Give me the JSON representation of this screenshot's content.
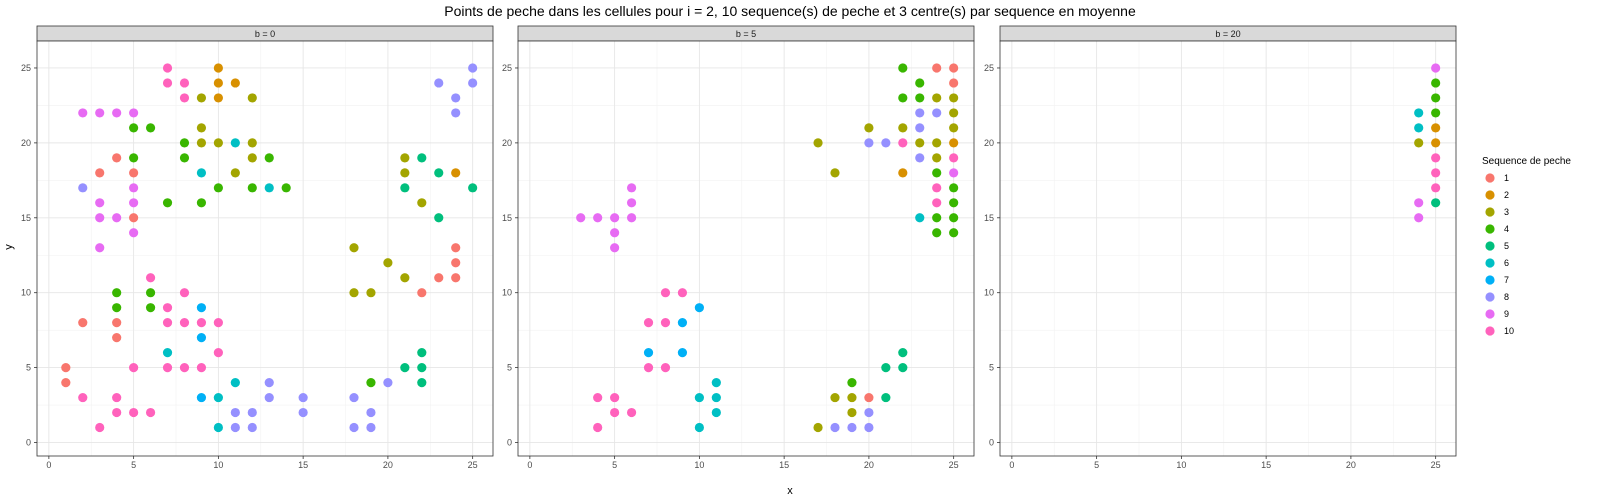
{
  "chart_data": {
    "type": "scatter",
    "title": "Points de peche dans les cellules pour i = 2, 10 sequence(s) de peche et 3 centre(s) par sequence en moyenne",
    "xlabel": "x",
    "ylabel": "y",
    "xlim": [
      -0.7,
      26.2
    ],
    "ylim": [
      -0.9,
      26.8
    ],
    "xticks": [
      0,
      5,
      10,
      15,
      20,
      25
    ],
    "yticks": [
      0,
      5,
      10,
      15,
      20,
      25
    ],
    "grid": true,
    "legend": {
      "title": "Sequence de peche",
      "placement": "right",
      "labels": [
        "1",
        "2",
        "3",
        "4",
        "5",
        "6",
        "7",
        "8",
        "9",
        "10"
      ]
    },
    "colors": {
      "1": "#F8766D",
      "2": "#D89000",
      "3": "#A3A500",
      "4": "#39B600",
      "5": "#00BF7D",
      "6": "#00BFC4",
      "7": "#00B0F6",
      "8": "#9590FF",
      "9": "#E76BF3",
      "10": "#FF62BC"
    },
    "panels": [
      {
        "label": "b = 0",
        "points": [
          [
            1,
            5,
            1
          ],
          [
            1,
            4,
            1
          ],
          [
            2,
            8,
            1
          ],
          [
            3,
            18,
            1
          ],
          [
            4,
            19,
            1
          ],
          [
            4,
            8,
            1
          ],
          [
            4,
            7,
            1
          ],
          [
            5,
            18,
            1
          ],
          [
            5,
            15,
            1
          ],
          [
            22,
            10,
            1
          ],
          [
            23,
            11,
            1
          ],
          [
            24,
            11,
            1
          ],
          [
            24,
            12,
            1
          ],
          [
            24,
            13,
            1
          ],
          [
            10,
            25,
            2
          ],
          [
            10,
            24,
            2
          ],
          [
            10,
            23,
            2
          ],
          [
            11,
            24,
            2
          ],
          [
            24,
            18,
            2
          ],
          [
            9,
            23,
            3
          ],
          [
            9,
            21,
            3
          ],
          [
            9,
            20,
            3
          ],
          [
            10,
            20,
            3
          ],
          [
            11,
            18,
            3
          ],
          [
            12,
            20,
            3
          ],
          [
            12,
            19,
            3
          ],
          [
            12,
            23,
            3
          ],
          [
            18,
            13,
            3
          ],
          [
            18,
            10,
            3
          ],
          [
            19,
            10,
            3
          ],
          [
            20,
            12,
            3
          ],
          [
            21,
            11,
            3
          ],
          [
            21,
            18,
            3
          ],
          [
            21,
            19,
            3
          ],
          [
            22,
            16,
            3
          ],
          [
            4,
            10,
            4
          ],
          [
            4,
            9,
            4
          ],
          [
            5,
            21,
            4
          ],
          [
            5,
            19,
            4
          ],
          [
            6,
            21,
            4
          ],
          [
            6,
            10,
            4
          ],
          [
            6,
            9,
            4
          ],
          [
            7,
            16,
            4
          ],
          [
            8,
            20,
            4
          ],
          [
            8,
            19,
            4
          ],
          [
            9,
            16,
            4
          ],
          [
            10,
            17,
            4
          ],
          [
            12,
            17,
            4
          ],
          [
            13,
            19,
            4
          ],
          [
            14,
            17,
            4
          ],
          [
            19,
            4,
            4
          ],
          [
            21,
            17,
            5
          ],
          [
            21,
            5,
            5
          ],
          [
            22,
            19,
            5
          ],
          [
            22,
            6,
            5
          ],
          [
            22,
            5,
            5
          ],
          [
            22,
            4,
            5
          ],
          [
            23,
            18,
            5
          ],
          [
            23,
            15,
            5
          ],
          [
            25,
            17,
            5
          ],
          [
            7,
            6,
            6
          ],
          [
            9,
            18,
            6
          ],
          [
            10,
            1,
            6
          ],
          [
            10,
            3,
            6
          ],
          [
            11,
            20,
            6
          ],
          [
            11,
            4,
            6
          ],
          [
            13,
            17,
            6
          ],
          [
            9,
            9,
            7
          ],
          [
            9,
            7,
            7
          ],
          [
            9,
            3,
            7
          ],
          [
            2,
            17,
            8
          ],
          [
            11,
            2,
            8
          ],
          [
            11,
            1,
            8
          ],
          [
            12,
            2,
            8
          ],
          [
            12,
            1,
            8
          ],
          [
            13,
            4,
            8
          ],
          [
            13,
            3,
            8
          ],
          [
            15,
            3,
            8
          ],
          [
            15,
            2,
            8
          ],
          [
            18,
            3,
            8
          ],
          [
            18,
            1,
            8
          ],
          [
            19,
            2,
            8
          ],
          [
            19,
            1,
            8
          ],
          [
            20,
            4,
            8
          ],
          [
            23,
            24,
            8
          ],
          [
            24,
            23,
            8
          ],
          [
            24,
            22,
            8
          ],
          [
            25,
            25,
            8
          ],
          [
            25,
            24,
            8
          ],
          [
            2,
            22,
            9
          ],
          [
            3,
            22,
            9
          ],
          [
            3,
            16,
            9
          ],
          [
            3,
            15,
            9
          ],
          [
            3,
            13,
            9
          ],
          [
            4,
            22,
            9
          ],
          [
            4,
            15,
            9
          ],
          [
            5,
            22,
            9
          ],
          [
            5,
            17,
            9
          ],
          [
            5,
            16,
            9
          ],
          [
            5,
            14,
            9
          ],
          [
            2,
            3,
            10
          ],
          [
            3,
            1,
            10
          ],
          [
            4,
            3,
            10
          ],
          [
            4,
            2,
            10
          ],
          [
            5,
            5,
            10
          ],
          [
            5,
            2,
            10
          ],
          [
            6,
            11,
            10
          ],
          [
            6,
            2,
            10
          ],
          [
            7,
            25,
            10
          ],
          [
            7,
            24,
            10
          ],
          [
            7,
            9,
            10
          ],
          [
            7,
            8,
            10
          ],
          [
            7,
            5,
            10
          ],
          [
            8,
            24,
            10
          ],
          [
            8,
            23,
            10
          ],
          [
            8,
            10,
            10
          ],
          [
            8,
            8,
            10
          ],
          [
            8,
            5,
            10
          ],
          [
            9,
            8,
            10
          ],
          [
            9,
            5,
            10
          ],
          [
            10,
            8,
            10
          ],
          [
            10,
            6,
            10
          ]
        ]
      },
      {
        "label": "b = 5",
        "points": [
          [
            20,
            3,
            1
          ],
          [
            24,
            25,
            1
          ],
          [
            25,
            25,
            1
          ],
          [
            25,
            24,
            1
          ],
          [
            22,
            18,
            2
          ],
          [
            25,
            20,
            2
          ],
          [
            17,
            20,
            3
          ],
          [
            17,
            1,
            3
          ],
          [
            18,
            18,
            3
          ],
          [
            18,
            3,
            3
          ],
          [
            19,
            3,
            3
          ],
          [
            19,
            2,
            3
          ],
          [
            20,
            21,
            3
          ],
          [
            22,
            21,
            3
          ],
          [
            23,
            20,
            3
          ],
          [
            24,
            23,
            3
          ],
          [
            24,
            20,
            3
          ],
          [
            24,
            19,
            3
          ],
          [
            25,
            23,
            3
          ],
          [
            25,
            22,
            3
          ],
          [
            25,
            21,
            3
          ],
          [
            19,
            4,
            4
          ],
          [
            22,
            25,
            4
          ],
          [
            22,
            23,
            4
          ],
          [
            23,
            24,
            4
          ],
          [
            23,
            23,
            4
          ],
          [
            24,
            18,
            4
          ],
          [
            24,
            15,
            4
          ],
          [
            24,
            14,
            4
          ],
          [
            25,
            17,
            4
          ],
          [
            25,
            16,
            4
          ],
          [
            25,
            15,
            4
          ],
          [
            25,
            14,
            4
          ],
          [
            21,
            5,
            5
          ],
          [
            21,
            3,
            5
          ],
          [
            22,
            6,
            5
          ],
          [
            22,
            5,
            5
          ],
          [
            10,
            3,
            6
          ],
          [
            10,
            1,
            6
          ],
          [
            11,
            4,
            6
          ],
          [
            11,
            3,
            6
          ],
          [
            11,
            2,
            6
          ],
          [
            23,
            15,
            6
          ],
          [
            7,
            6,
            7
          ],
          [
            9,
            8,
            7
          ],
          [
            9,
            6,
            7
          ],
          [
            10,
            9,
            7
          ],
          [
            18,
            1,
            8
          ],
          [
            19,
            1,
            8
          ],
          [
            20,
            20,
            8
          ],
          [
            20,
            2,
            8
          ],
          [
            20,
            1,
            8
          ],
          [
            21,
            20,
            8
          ],
          [
            23,
            22,
            8
          ],
          [
            23,
            21,
            8
          ],
          [
            23,
            19,
            8
          ],
          [
            24,
            22,
            8
          ],
          [
            3,
            15,
            9
          ],
          [
            4,
            15,
            9
          ],
          [
            5,
            15,
            9
          ],
          [
            5,
            14,
            9
          ],
          [
            5,
            13,
            9
          ],
          [
            6,
            17,
            9
          ],
          [
            6,
            16,
            9
          ],
          [
            6,
            15,
            9
          ],
          [
            25,
            18,
            9
          ],
          [
            4,
            3,
            10
          ],
          [
            4,
            1,
            10
          ],
          [
            5,
            3,
            10
          ],
          [
            5,
            2,
            10
          ],
          [
            6,
            2,
            10
          ],
          [
            7,
            8,
            10
          ],
          [
            7,
            5,
            10
          ],
          [
            8,
            10,
            10
          ],
          [
            8,
            8,
            10
          ],
          [
            8,
            5,
            10
          ],
          [
            9,
            10,
            10
          ],
          [
            22,
            20,
            10
          ],
          [
            24,
            17,
            10
          ],
          [
            24,
            16,
            10
          ],
          [
            25,
            19,
            10
          ]
        ]
      },
      {
        "label": "b = 20",
        "points": [
          [
            25,
            20,
            2
          ],
          [
            25,
            21,
            2
          ],
          [
            24,
            20,
            3
          ],
          [
            25,
            24,
            4
          ],
          [
            25,
            23,
            4
          ],
          [
            25,
            22,
            4
          ],
          [
            25,
            16,
            5
          ],
          [
            24,
            22,
            6
          ],
          [
            24,
            21,
            6
          ],
          [
            24,
            16,
            9
          ],
          [
            24,
            15,
            9
          ],
          [
            25,
            25,
            9
          ],
          [
            25,
            19,
            10
          ],
          [
            25,
            18,
            10
          ],
          [
            25,
            17,
            10
          ]
        ]
      }
    ]
  }
}
